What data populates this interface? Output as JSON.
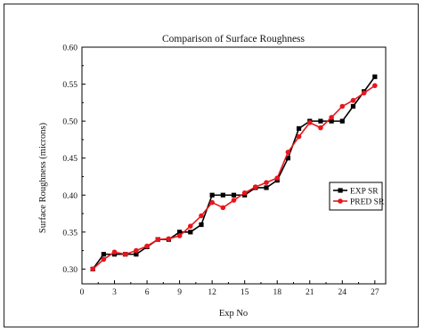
{
  "chart_data": {
    "type": "line",
    "title": "Comparison of Surface Roughness",
    "xlabel": "Exp No",
    "ylabel": "Surface Roughness (microns)",
    "xlim": [
      0,
      28
    ],
    "ylim": [
      0.28,
      0.6
    ],
    "xticks": [
      0,
      3,
      6,
      9,
      12,
      15,
      18,
      21,
      24,
      27
    ],
    "yticks": [
      0.3,
      0.35,
      0.4,
      0.45,
      0.5,
      0.55,
      0.6
    ],
    "x": [
      1,
      2,
      3,
      4,
      5,
      6,
      7,
      8,
      9,
      10,
      11,
      12,
      13,
      14,
      15,
      16,
      17,
      18,
      19,
      20,
      21,
      22,
      23,
      24,
      25,
      26,
      27
    ],
    "series": [
      {
        "name": "EXP SR",
        "color": "#000000",
        "marker": "square",
        "values": [
          0.3,
          0.32,
          0.32,
          0.32,
          0.32,
          0.33,
          0.34,
          0.34,
          0.35,
          0.35,
          0.36,
          0.4,
          0.4,
          0.4,
          0.4,
          0.41,
          0.41,
          0.42,
          0.45,
          0.49,
          0.5,
          0.5,
          0.5,
          0.5,
          0.52,
          0.54,
          0.56
        ]
      },
      {
        "name": "PRED SR",
        "color": "#e8161c",
        "marker": "circle",
        "values": [
          0.3,
          0.313,
          0.323,
          0.32,
          0.325,
          0.331,
          0.34,
          0.341,
          0.345,
          0.358,
          0.372,
          0.39,
          0.383,
          0.393,
          0.403,
          0.411,
          0.417,
          0.423,
          0.458,
          0.479,
          0.498,
          0.491,
          0.505,
          0.52,
          0.528,
          0.538,
          0.548
        ]
      }
    ],
    "legend_position": "right"
  }
}
